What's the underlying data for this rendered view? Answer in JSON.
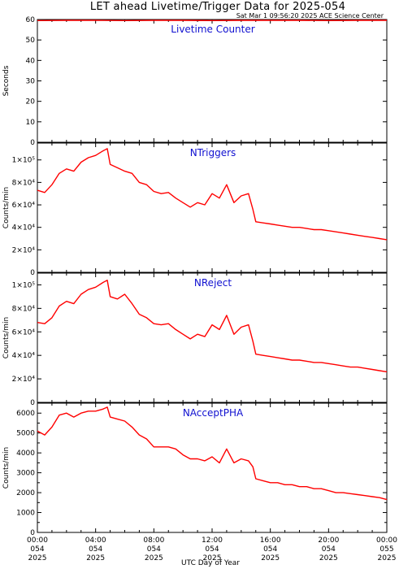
{
  "title": "LET ahead Livetime/Trigger Data for 2025-054",
  "timestamp": "Sat Mar  1 09:56:20 2025 ACE Science Center",
  "xlabel": "UTC Day of Year",
  "x_ticks": [
    {
      "time": "00:00",
      "doy": "054",
      "year": "2025"
    },
    {
      "time": "04:00",
      "doy": "054",
      "year": "2025"
    },
    {
      "time": "08:00",
      "doy": "054",
      "year": "2025"
    },
    {
      "time": "12:00",
      "doy": "054",
      "year": "2025"
    },
    {
      "time": "16:00",
      "doy": "054",
      "year": "2025"
    },
    {
      "time": "20:00",
      "doy": "054",
      "year": "2025"
    },
    {
      "time": "00:00",
      "doy": "055",
      "year": "2025"
    }
  ],
  "colors": {
    "series": "#ff0000",
    "panel_label": "#1010d0",
    "axes": "#000000"
  },
  "chart_data": [
    {
      "type": "line",
      "label": "Livetime Counter",
      "ylabel": "Seconds",
      "xlim": [
        0,
        24
      ],
      "ylim": [
        0,
        60
      ],
      "yticks": [
        0,
        10,
        20,
        30,
        40,
        50,
        60
      ],
      "ytick_labels": [
        "0",
        "10",
        "20",
        "30",
        "40",
        "50",
        "60"
      ],
      "x": [
        0,
        2,
        4,
        6,
        8,
        10,
        12,
        14,
        16,
        18,
        20,
        22,
        24
      ],
      "values": [
        59.5,
        59.6,
        59.6,
        59.5,
        59.6,
        59.6,
        59.5,
        59.6,
        59.6,
        59.6,
        59.5,
        59.6,
        59.6
      ]
    },
    {
      "type": "line",
      "label": "NTriggers",
      "ylabel": "Counts/min",
      "xlim": [
        0,
        24
      ],
      "ylim": [
        0,
        115000
      ],
      "yticks": [
        0,
        20000,
        40000,
        60000,
        80000,
        100000
      ],
      "ytick_labels": [
        "0",
        "2×10⁴",
        "4×10⁴",
        "6×10⁴",
        "8×10⁴",
        "1×10⁵"
      ],
      "x": [
        0,
        0.5,
        1,
        1.5,
        2,
        2.5,
        3,
        3.5,
        4,
        4.5,
        4.8,
        5,
        5.5,
        6,
        6.5,
        7,
        7.5,
        8,
        8.5,
        9,
        9.5,
        10,
        10.5,
        11,
        11.5,
        12,
        12.5,
        13,
        13.5,
        14,
        14.5,
        14.8,
        15,
        15.5,
        16,
        16.5,
        17,
        17.5,
        18,
        18.5,
        19,
        19.5,
        20,
        20.5,
        21,
        21.5,
        22,
        22.5,
        23,
        23.5,
        24
      ],
      "values": [
        73000,
        71000,
        78000,
        88000,
        92000,
        90000,
        98000,
        102000,
        104000,
        108000,
        110000,
        96000,
        93000,
        90000,
        88000,
        80000,
        78000,
        72000,
        70000,
        71000,
        66000,
        62000,
        58000,
        62000,
        60000,
        70000,
        66000,
        78000,
        62000,
        68000,
        70000,
        56000,
        45000,
        44000,
        43000,
        42000,
        41000,
        40000,
        40000,
        39000,
        38000,
        38000,
        37000,
        36000,
        35000,
        34000,
        33000,
        32000,
        31000,
        30000,
        29000
      ]
    },
    {
      "type": "line",
      "label": "NReject",
      "ylabel": "Counts/min",
      "xlim": [
        0,
        24
      ],
      "ylim": [
        0,
        110000
      ],
      "yticks": [
        0,
        20000,
        40000,
        60000,
        80000,
        100000
      ],
      "ytick_labels": [
        "0",
        "2×10⁴",
        "4×10⁴",
        "6×10⁴",
        "8×10⁴",
        "1×10⁵"
      ],
      "x": [
        0,
        0.5,
        1,
        1.5,
        2,
        2.5,
        3,
        3.5,
        4,
        4.5,
        4.8,
        5,
        5.5,
        6,
        6.5,
        7,
        7.5,
        8,
        8.5,
        9,
        9.5,
        10,
        10.5,
        11,
        11.5,
        12,
        12.5,
        13,
        13.5,
        14,
        14.5,
        14.8,
        15,
        15.5,
        16,
        16.5,
        17,
        17.5,
        18,
        18.5,
        19,
        19.5,
        20,
        20.5,
        21,
        21.5,
        22,
        22.5,
        23,
        23.5,
        24
      ],
      "values": [
        68000,
        67000,
        72000,
        82000,
        86000,
        84000,
        92000,
        96000,
        98000,
        102000,
        104000,
        90000,
        88000,
        92000,
        84000,
        75000,
        72000,
        67000,
        66000,
        67000,
        62000,
        58000,
        54000,
        58000,
        56000,
        66000,
        62000,
        74000,
        58000,
        64000,
        66000,
        52000,
        41000,
        40000,
        39000,
        38000,
        37000,
        36000,
        36000,
        35000,
        34000,
        34000,
        33000,
        32000,
        31000,
        30000,
        30000,
        29000,
        28000,
        27000,
        26000
      ]
    },
    {
      "type": "line",
      "label": "NAcceptPHA",
      "ylabel": "Counts/min",
      "xlim": [
        0,
        24
      ],
      "ylim": [
        0,
        6500
      ],
      "yticks": [
        0,
        500,
        1000,
        1500,
        2000,
        2500,
        3000,
        3500,
        4000,
        4500,
        5000,
        5500,
        6000
      ],
      "ytick_labels": [
        "0",
        "",
        "1000",
        "",
        "2000",
        "",
        "3000",
        "",
        "4000",
        "",
        "5000",
        "",
        "6000"
      ],
      "x": [
        0,
        0.5,
        1,
        1.5,
        2,
        2.5,
        3,
        3.5,
        4,
        4.5,
        4.8,
        5,
        5.5,
        6,
        6.5,
        7,
        7.5,
        8,
        8.5,
        9,
        9.5,
        10,
        10.5,
        11,
        11.5,
        12,
        12.5,
        13,
        13.5,
        14,
        14.5,
        14.8,
        15,
        15.5,
        16,
        16.5,
        17,
        17.5,
        18,
        18.5,
        19,
        19.5,
        20,
        20.5,
        21,
        21.5,
        22,
        22.5,
        23,
        23.5,
        24
      ],
      "values": [
        5100,
        4900,
        5300,
        5900,
        6000,
        5800,
        6000,
        6100,
        6100,
        6200,
        6300,
        5800,
        5700,
        5600,
        5300,
        4900,
        4700,
        4300,
        4300,
        4300,
        4200,
        3900,
        3700,
        3700,
        3600,
        3800,
        3500,
        4200,
        3500,
        3700,
        3600,
        3300,
        2700,
        2600,
        2500,
        2500,
        2400,
        2400,
        2300,
        2300,
        2200,
        2200,
        2100,
        2000,
        2000,
        1950,
        1900,
        1850,
        1800,
        1750,
        1650
      ]
    }
  ]
}
